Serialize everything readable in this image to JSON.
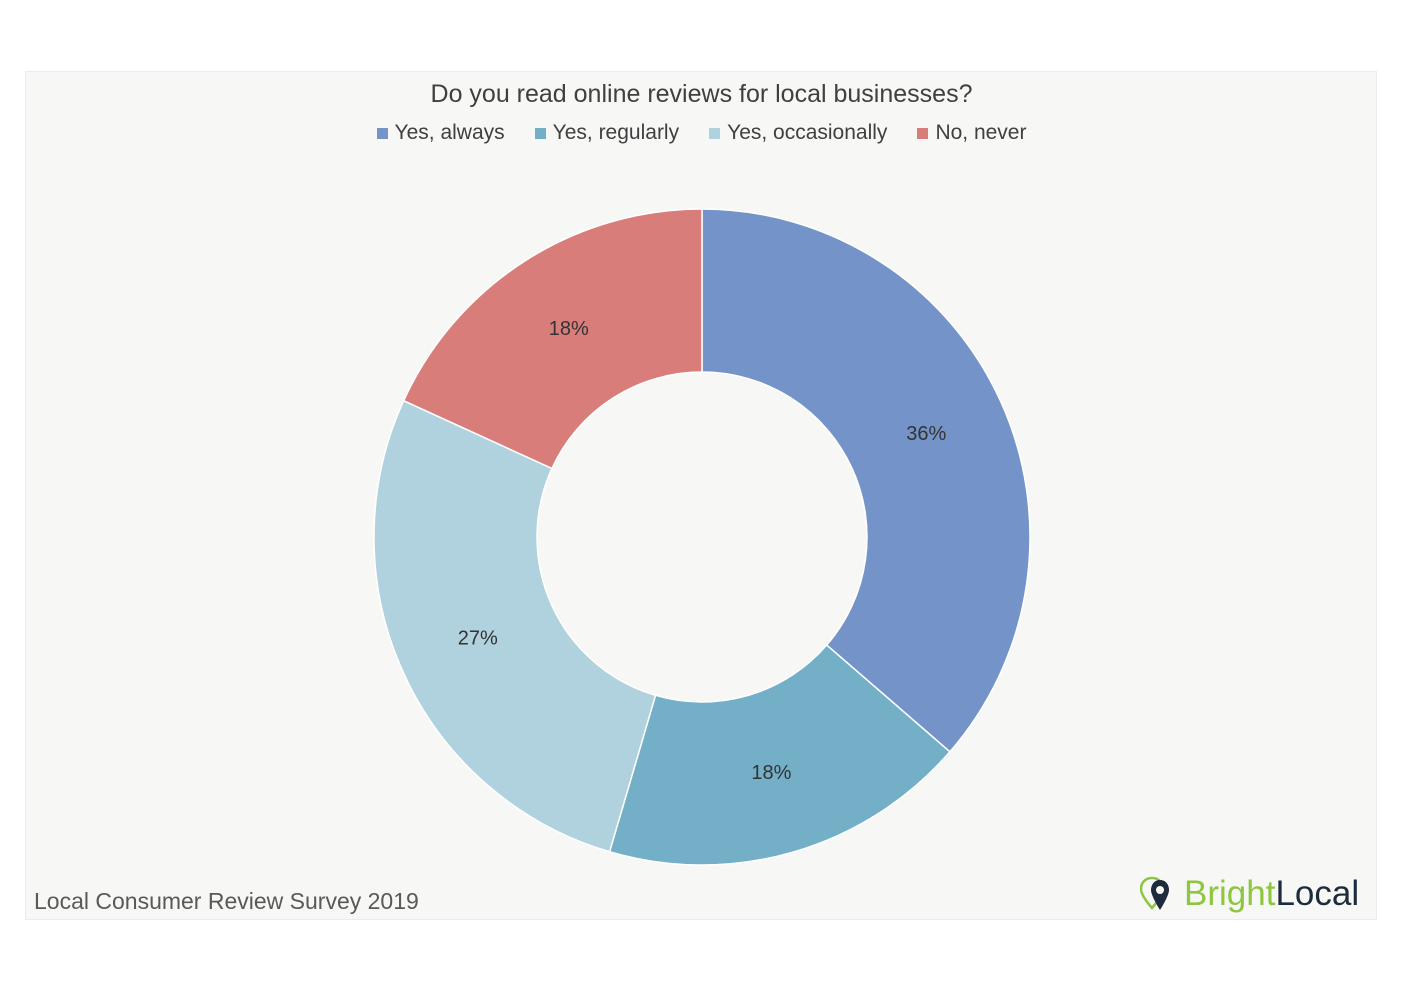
{
  "chart_data": {
    "type": "pie",
    "title": "Do you read online reviews for local businesses?",
    "categories": [
      "Yes, always",
      "Yes, regularly",
      "Yes, occasionally",
      "No, never"
    ],
    "values": [
      36,
      18,
      27,
      18
    ],
    "data_labels": [
      "36%",
      "18%",
      "27%",
      "18%"
    ],
    "colors": [
      "#7493c8",
      "#74afc8",
      "#b0d1de",
      "#d97d7a"
    ],
    "donut": true,
    "legend_position": "top-center"
  },
  "footer": {
    "source": "Local Consumer Review Survey 2019"
  },
  "brand": {
    "part1": "Bright",
    "part2": "Local",
    "icon": "location-pin-icon",
    "colors": [
      "#8dc63f",
      "#1e2b3c"
    ]
  }
}
